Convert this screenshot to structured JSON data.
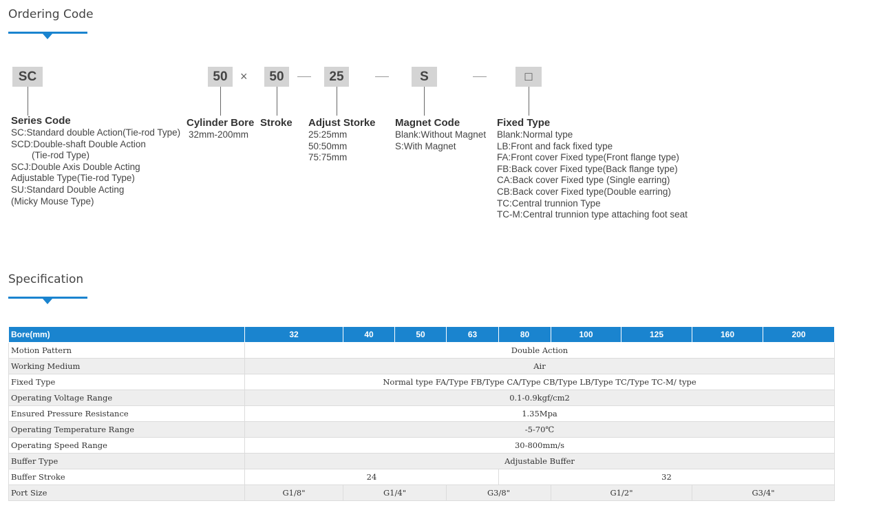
{
  "ordering": {
    "title": "Ordering Code",
    "codes": {
      "series": "SC",
      "bore": "50",
      "times": "×",
      "stroke": "50",
      "adjust": "25",
      "magnet": "S",
      "fixed": "□"
    },
    "groups": {
      "series": {
        "title": "Series Code",
        "lines": [
          "SC:Standard double Action(Tie-rod Type)",
          "SCD:Double-shaft Double Action",
          "(Tie-rod Type)",
          "SCJ:Double Axis Double Acting",
          "Adjustable Type(Tie-rod Type)",
          "SU:Standard Double Acting",
          "(Micky Mouse Type)"
        ]
      },
      "bore": {
        "title": "Cylinder Bore",
        "lines": [
          "32mm-200mm"
        ]
      },
      "stroke": {
        "title": "Stroke",
        "lines": []
      },
      "adjust": {
        "title": "Adjust Storke",
        "lines": [
          "25:25mm",
          "50:50mm",
          "75:75mm"
        ]
      },
      "magnet": {
        "title": "Magnet Code",
        "lines": [
          "Blank:Without Magnet",
          "S:With Magnet"
        ]
      },
      "fixed": {
        "title": "Fixed Type",
        "lines": [
          "Blank:Normal type",
          "LB:Front and fack fixed type",
          "FA:Front cover Fixed type(Front flange type)",
          "FB:Back cover Fixed type(Back flange type)",
          "CA:Back cover Fixed type (Single earring)",
          "CB:Back cover Fixed type(Double earring)",
          "TC:Central trunnion Type",
          "TC-M:Central trunnion type attaching foot seat"
        ]
      }
    }
  },
  "specification": {
    "title": "Specification",
    "header": [
      "Bore(mm)",
      "32",
      "40",
      "50",
      "63",
      "80",
      "100",
      "125",
      "160",
      "200"
    ],
    "rows": {
      "motion": {
        "label": "Motion Pattern",
        "value": "Double Action"
      },
      "medium": {
        "label": "Working Medium",
        "value": "Air"
      },
      "fixed": {
        "label": "Fixed Type",
        "value": "Normal type FA/Type FB/Type CA/Type CB/Type LB/Type TC/Type TC-M/ type"
      },
      "voltage": {
        "label": "Operating Voltage Range",
        "value": "0.1-0.9kgf/cm2"
      },
      "pressure": {
        "label": "Ensured Pressure Resistance",
        "value": "1.35Mpa"
      },
      "temperature": {
        "label": "Operating Temperature Range",
        "value": "-5-70℃"
      },
      "speed": {
        "label": "Operating Speed Range",
        "value": "30-800mm/s"
      },
      "buffer_type": {
        "label": "Buffer Type",
        "value": "Adjustable Buffer"
      },
      "buffer_stroke": {
        "label": "Buffer Stroke",
        "values": [
          "24",
          "32"
        ]
      },
      "port_size": {
        "label": "Port Size",
        "values": [
          "G1/8\"",
          "G1/4\"",
          "G3/8\"",
          "G1/2\"",
          "G3/4\""
        ]
      }
    }
  },
  "colors": {
    "accent": "#1a84cf",
    "code_box": "#d4d4d4",
    "row_alt": "#eeeeee"
  },
  "icons": {
    "section_marker": "down-triangle-icon"
  }
}
